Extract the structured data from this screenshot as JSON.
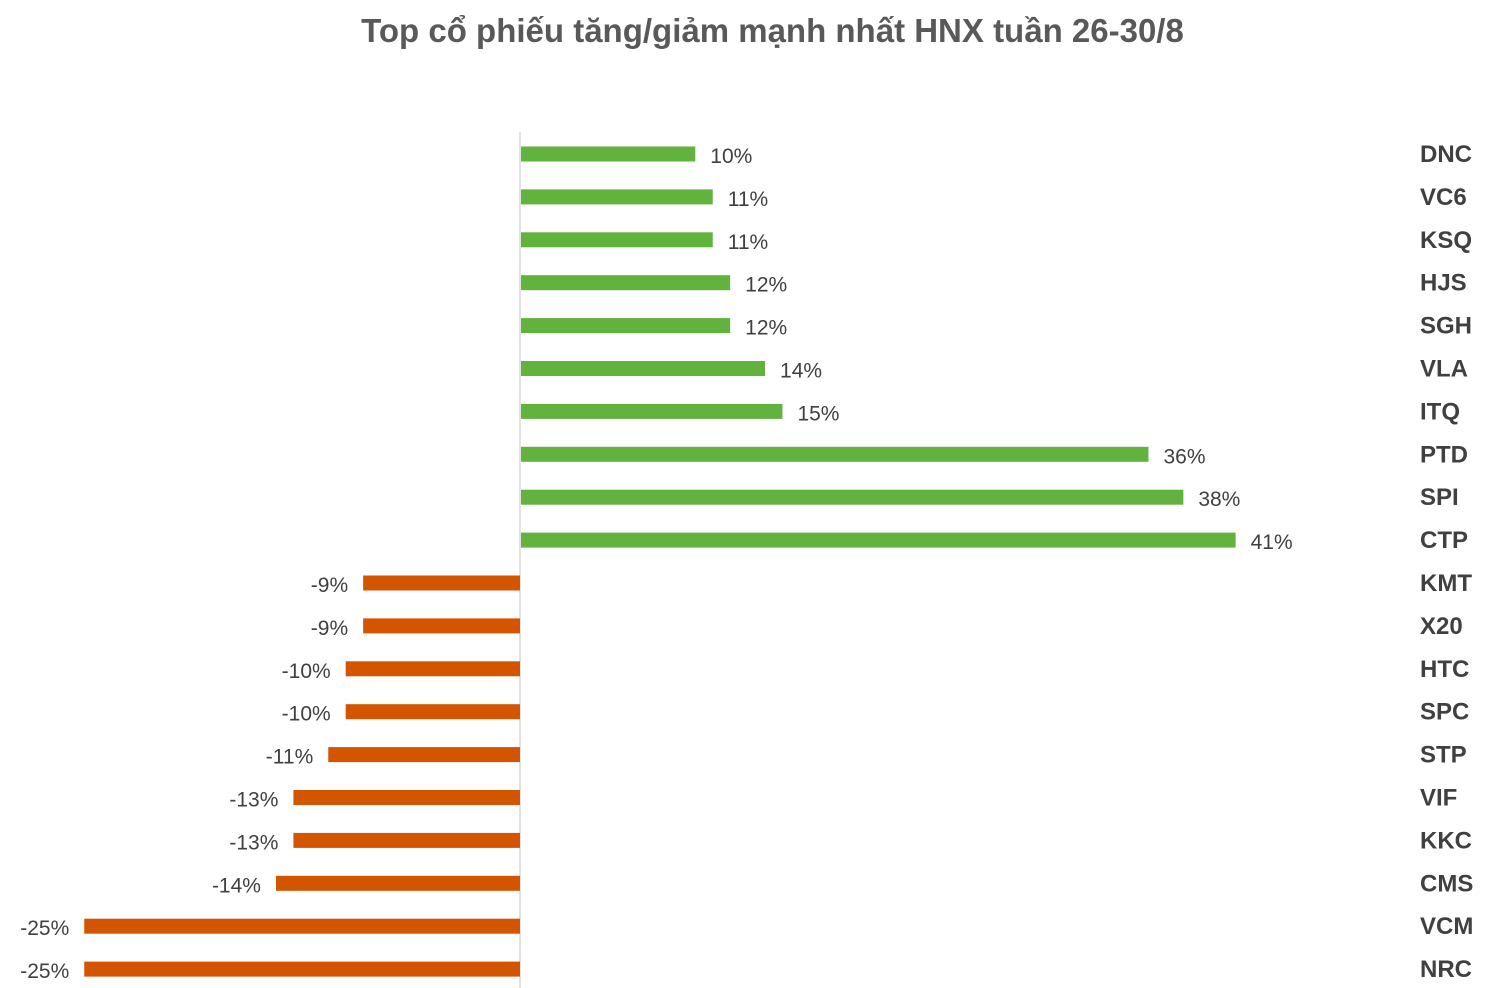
{
  "chart_data": {
    "type": "bar",
    "orientation": "horizontal",
    "title": "Top cổ phiếu tăng/giảm mạnh nhất HNX tuần 26-30/8",
    "xlabel": "",
    "ylabel": "",
    "categories": [
      "DNC",
      "VC6",
      "KSQ",
      "HJS",
      "SGH",
      "VLA",
      "ITQ",
      "PTD",
      "SPI",
      "CTP",
      "KMT",
      "X20",
      "HTC",
      "SPC",
      "STP",
      "VIF",
      "KKC",
      "CMS",
      "VCM",
      "NRC"
    ],
    "values": [
      10,
      11,
      11,
      12,
      12,
      14,
      15,
      36,
      38,
      41,
      -9,
      -9,
      -10,
      -10,
      -11,
      -13,
      -13,
      -14,
      -25,
      -25
    ],
    "value_labels": [
      "10%",
      "11%",
      "11%",
      "12%",
      "12%",
      "14%",
      "15%",
      "36%",
      "38%",
      "41%",
      "-9%",
      "-9%",
      "-10%",
      "-10%",
      "-11%",
      "-13%",
      "-13%",
      "-14%",
      "-25%",
      "-25%"
    ],
    "positive_color": "#62b23e",
    "negative_color": "#d45500",
    "axis_color": "#d9d9d9",
    "grid": false,
    "legend": "none"
  }
}
